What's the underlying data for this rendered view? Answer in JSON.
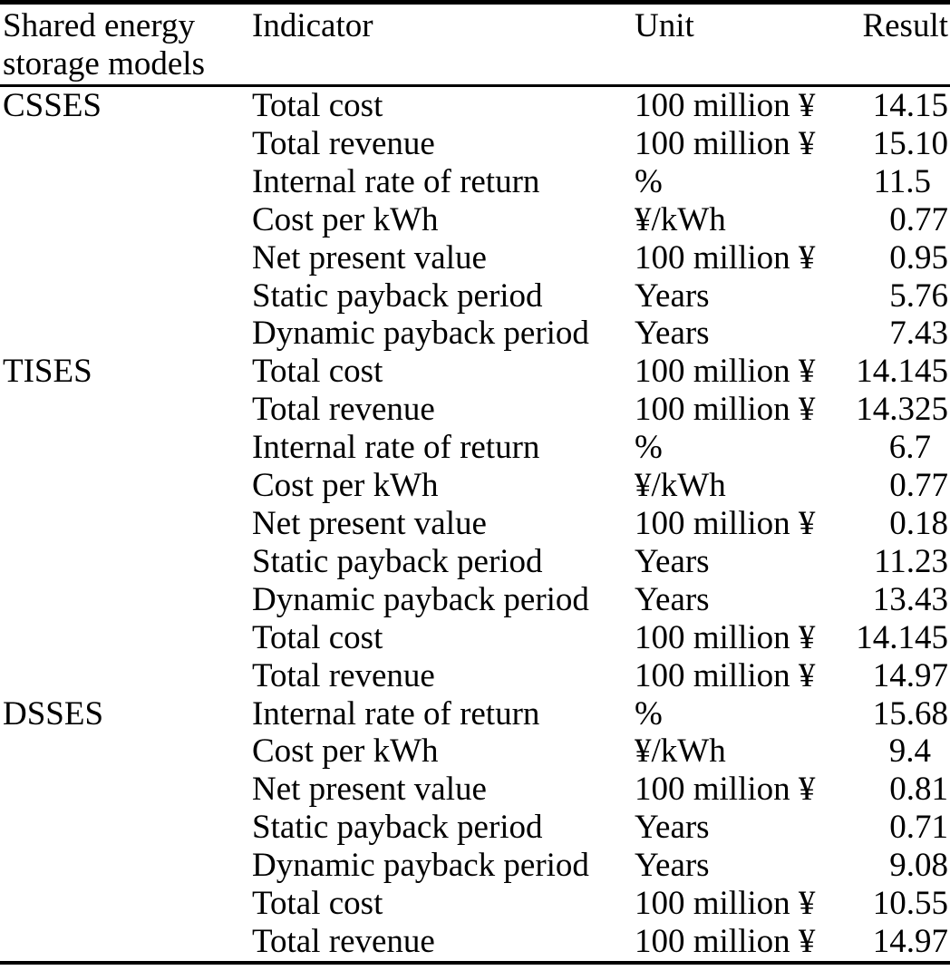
{
  "page": {
    "background_color": "#ffffff",
    "text_color": "#000000",
    "rule_color": "#000000"
  },
  "table": {
    "header": {
      "models": "Shared energy storage models",
      "indicator": "Indicator",
      "unit": "Unit",
      "result": "Result"
    },
    "rows": [
      {
        "model": "CSSES",
        "indicator": "Total cost",
        "unit": "100 million ¥",
        "result": "14.15"
      },
      {
        "model": "",
        "indicator": "Total revenue",
        "unit": "100 million ¥",
        "result": "15.10"
      },
      {
        "model": "",
        "indicator": "Internal rate of return",
        "unit": "%",
        "result": "11.5"
      },
      {
        "model": "",
        "indicator": "Cost per kWh",
        "unit": "¥/kWh",
        "result": "0.77"
      },
      {
        "model": "",
        "indicator": "Net present value",
        "unit": "100 million ¥",
        "result": "0.95"
      },
      {
        "model": "",
        "indicator": "Static payback period",
        "unit": "Years",
        "result": "5.76"
      },
      {
        "model": "",
        "indicator": "Dynamic payback period",
        "unit": "Years",
        "result": "7.43"
      },
      {
        "model": "TISES",
        "indicator": "Total cost",
        "unit": "100 million ¥",
        "result": "14.145"
      },
      {
        "model": "",
        "indicator": "Total revenue",
        "unit": "100 million ¥",
        "result": "14.325"
      },
      {
        "model": "",
        "indicator": "Internal rate of return",
        "unit": "%",
        "result": "6.7"
      },
      {
        "model": "",
        "indicator": "Cost per kWh",
        "unit": "¥/kWh",
        "result": "0.77"
      },
      {
        "model": "",
        "indicator": "Net present value",
        "unit": "100 million ¥",
        "result": "0.18"
      },
      {
        "model": "",
        "indicator": "Static payback period",
        "unit": "Years",
        "result": "11.23"
      },
      {
        "model": "",
        "indicator": "Dynamic payback period",
        "unit": "Years",
        "result": "13.43"
      },
      {
        "model": "",
        "indicator": "Total cost",
        "unit": "100 million ¥",
        "result": "14.145"
      },
      {
        "model": "",
        "indicator": "Total revenue",
        "unit": "100 million ¥",
        "result": "14.97"
      },
      {
        "model": "DSSES",
        "indicator": "Internal rate of return",
        "unit": "%",
        "result": "15.68"
      },
      {
        "model": "",
        "indicator": "Cost per kWh",
        "unit": "¥/kWh",
        "result": "9.4"
      },
      {
        "model": "",
        "indicator": "Net present value",
        "unit": "100 million ¥",
        "result": "0.81"
      },
      {
        "model": "",
        "indicator": "Static payback period",
        "unit": "Years",
        "result": "0.71"
      },
      {
        "model": "",
        "indicator": "Dynamic payback period",
        "unit": "Years",
        "result": "9.08"
      },
      {
        "model": "",
        "indicator": "Total cost",
        "unit": "100 million ¥",
        "result": "10.55"
      },
      {
        "model": "",
        "indicator": "Total revenue",
        "unit": "100 million ¥",
        "result": "14.97"
      }
    ]
  }
}
